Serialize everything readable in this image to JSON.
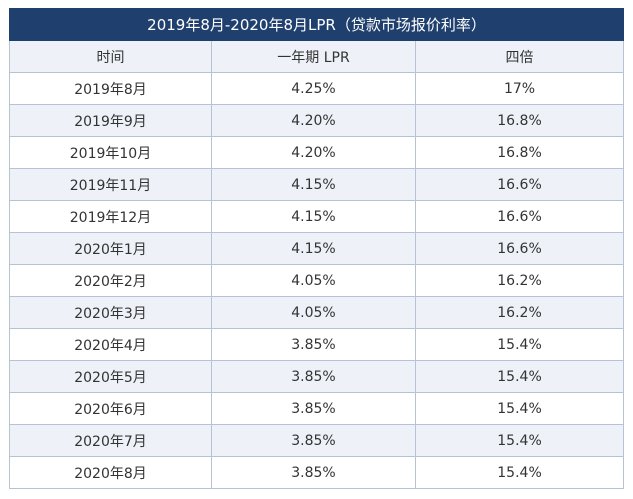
{
  "table": {
    "title": "2019年8月-2020年8月LPR（贷款市场报价利率）",
    "headers": [
      "时间",
      "一年期 LPR",
      "四倍"
    ],
    "rows": [
      [
        "2019年8月",
        "4.25%",
        "17%"
      ],
      [
        "2019年9月",
        "4.20%",
        "16.8%"
      ],
      [
        "2019年10月",
        "4.20%",
        "16.8%"
      ],
      [
        "2019年11月",
        "4.15%",
        "16.6%"
      ],
      [
        "2019年12月",
        "4.15%",
        "16.6%"
      ],
      [
        "2020年1月",
        "4.15%",
        "16.6%"
      ],
      [
        "2020年2月",
        "4.05%",
        "16.2%"
      ],
      [
        "2020年3月",
        "4.05%",
        "16.2%"
      ],
      [
        "2020年4月",
        "3.85%",
        "15.4%"
      ],
      [
        "2020年5月",
        "3.85%",
        "15.4%"
      ],
      [
        "2020年6月",
        "3.85%",
        "15.4%"
      ],
      [
        "2020年7月",
        "3.85%",
        "15.4%"
      ],
      [
        "2020年8月",
        "3.85%",
        "15.4%"
      ]
    ]
  },
  "colors": {
    "header_bg": "#1f3f6e",
    "odd_row_bg": "#eef2f8",
    "border": "#b7c3d3",
    "text": "#333333"
  }
}
